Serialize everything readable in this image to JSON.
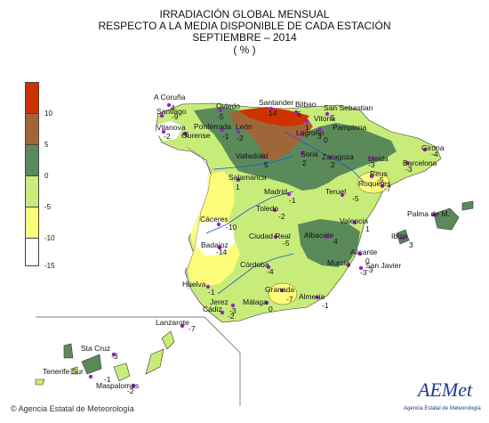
{
  "title": {
    "line1": "IRRADIACIÓN GLOBAL MENSUAL",
    "line2": "RESPECTO A LA MEDIA DISPONIBLE DE CADA ESTACIÓN",
    "line3": "SEPTIEMBRE – 2014",
    "line4": "( % )"
  },
  "legend": {
    "ticks": [
      "10",
      "5",
      "0",
      "-5",
      "-10",
      "-15"
    ],
    "colors": [
      "#cc3300",
      "#a0663a",
      "#5a8a5a",
      "#c8ec7a",
      "#fdfd7c",
      "#ffffff"
    ]
  },
  "stations": [
    {
      "name": "A Coruña",
      "value": "4"
    },
    {
      "name": "Santiago",
      "value": "-9"
    },
    {
      "name": "Vilanova",
      "value": "-2"
    },
    {
      "name": "Ourense",
      "value": "-6"
    },
    {
      "name": "Oviedo",
      "value": "-5"
    },
    {
      "name": "Ponferrada",
      "value": "-1"
    },
    {
      "name": "León",
      "value": "-2"
    },
    {
      "name": "Santander",
      "value": "14"
    },
    {
      "name": "Bilbao",
      "value": "6"
    },
    {
      "name": "San Sebastian",
      "value": "5"
    },
    {
      "name": "Vitoria",
      "value": "1"
    },
    {
      "name": "Pamplona",
      "value": "3"
    },
    {
      "name": "Logroño",
      "value": "0"
    },
    {
      "name": "Valladolid",
      "value": "5"
    },
    {
      "name": "Soria",
      "value": "2"
    },
    {
      "name": "Zaragoza",
      "value": "2"
    },
    {
      "name": "Lleida",
      "value": "-3"
    },
    {
      "name": "Girona",
      "value": "-4"
    },
    {
      "name": "Barcelona",
      "value": "-3"
    },
    {
      "name": "Reus",
      "value": "-5"
    },
    {
      "name": "Roquetes",
      "value": "-7"
    },
    {
      "name": "Salamanca",
      "value": "1"
    },
    {
      "name": "Madrid",
      "value": "-1"
    },
    {
      "name": "Teruel",
      "value": "-5"
    },
    {
      "name": "Toledo",
      "value": "-2"
    },
    {
      "name": "Cáceres",
      "value": "-10"
    },
    {
      "name": "Valencia",
      "value": "1"
    },
    {
      "name": "Palma de M.",
      "value": ""
    },
    {
      "name": "Ibiza",
      "value": "3"
    },
    {
      "name": "Badajoz",
      "value": "-14"
    },
    {
      "name": "Ciudad Real",
      "value": "-5"
    },
    {
      "name": "Albacete",
      "value": "4"
    },
    {
      "name": "Alicante",
      "value": "0"
    },
    {
      "name": "Murcia",
      "value": "-3"
    },
    {
      "name": "San Javier",
      "value": "-3"
    },
    {
      "name": "Córdoba",
      "value": "-4"
    },
    {
      "name": "Huelva",
      "value": "-1"
    },
    {
      "name": "Granada",
      "value": "-7"
    },
    {
      "name": "Almería",
      "value": "-1"
    },
    {
      "name": "Jerez",
      "value": "-3"
    },
    {
      "name": "Cádiz",
      "value": "-2"
    },
    {
      "name": "Málaga",
      "value": "0"
    },
    {
      "name": "Lanzarote",
      "value": "-7"
    },
    {
      "name": "Sta Cruz",
      "value": "-3"
    },
    {
      "name": "Tenerife Sur",
      "value": "-1"
    },
    {
      "name": "Maspalomas",
      "value": "-2"
    }
  ],
  "footer": {
    "copyright": "© Agencia Estatal de Meteorología",
    "logo_text": "AEMet",
    "logo_sub": "Agencia Estatal de Meteorología"
  }
}
